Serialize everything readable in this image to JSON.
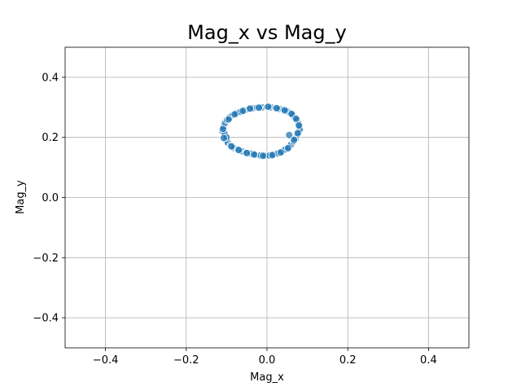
{
  "chart_data": {
    "type": "scatter",
    "title": "Mag_x vs Mag_y",
    "xlabel": "Mag_x",
    "ylabel": "Mag_y",
    "xlim": [
      -0.5,
      0.5
    ],
    "ylim": [
      -0.5,
      0.5
    ],
    "xticks": [
      -0.4,
      -0.2,
      0.0,
      0.2,
      0.4
    ],
    "yticks": [
      -0.4,
      -0.2,
      0.0,
      0.2,
      0.4
    ],
    "xtick_labels": [
      "−0.4",
      "−0.2",
      "0.0",
      "0.2",
      "0.4"
    ],
    "ytick_labels": [
      "−0.4",
      "−0.2",
      "0.0",
      "0.2",
      "0.4"
    ],
    "grid": true,
    "marker_color": "#1f77b4",
    "marker_edge_color": "#ffffff",
    "points": [
      [
        -0.11,
        0.22
      ],
      [
        -0.108,
        0.235
      ],
      [
        -0.106,
        0.205
      ],
      [
        -0.104,
        0.248
      ],
      [
        -0.102,
        0.192
      ],
      [
        -0.099,
        0.258
      ],
      [
        -0.097,
        0.182
      ],
      [
        -0.093,
        0.266
      ],
      [
        -0.09,
        0.173
      ],
      [
        -0.085,
        0.274
      ],
      [
        -0.082,
        0.165
      ],
      [
        -0.076,
        0.28
      ],
      [
        -0.072,
        0.16
      ],
      [
        -0.066,
        0.285
      ],
      [
        -0.062,
        0.154
      ],
      [
        -0.056,
        0.29
      ],
      [
        -0.051,
        0.15
      ],
      [
        -0.046,
        0.294
      ],
      [
        -0.04,
        0.146
      ],
      [
        -0.035,
        0.297
      ],
      [
        -0.028,
        0.142
      ],
      [
        -0.024,
        0.299
      ],
      [
        -0.016,
        0.14
      ],
      [
        -0.012,
        0.3
      ],
      [
        -0.005,
        0.139
      ],
      [
        0.0,
        0.301
      ],
      [
        0.006,
        0.14
      ],
      [
        0.01,
        0.3
      ],
      [
        0.016,
        0.143
      ],
      [
        0.021,
        0.298
      ],
      [
        0.027,
        0.147
      ],
      [
        0.031,
        0.295
      ],
      [
        0.037,
        0.153
      ],
      [
        0.041,
        0.292
      ],
      [
        0.045,
        0.16
      ],
      [
        0.05,
        0.287
      ],
      [
        0.053,
        0.168
      ],
      [
        0.057,
        0.281
      ],
      [
        0.06,
        0.177
      ],
      [
        0.064,
        0.274
      ],
      [
        0.066,
        0.187
      ],
      [
        0.069,
        0.265
      ],
      [
        0.071,
        0.197
      ],
      [
        0.074,
        0.256
      ],
      [
        0.075,
        0.208
      ],
      [
        0.078,
        0.246
      ],
      [
        0.079,
        0.218
      ],
      [
        0.08,
        0.235
      ],
      [
        0.081,
        0.227
      ],
      [
        0.055,
        0.208
      ],
      [
        -0.105,
        0.212
      ],
      [
        -0.1,
        0.2
      ],
      [
        -0.095,
        0.26
      ],
      [
        -0.088,
        0.17
      ],
      [
        -0.08,
        0.277
      ],
      [
        -0.07,
        0.158
      ],
      [
        -0.06,
        0.288
      ],
      [
        -0.05,
        0.148
      ],
      [
        -0.042,
        0.296
      ],
      [
        -0.032,
        0.143
      ],
      [
        -0.02,
        0.299
      ],
      [
        -0.01,
        0.139
      ],
      [
        0.003,
        0.302
      ],
      [
        0.013,
        0.141
      ],
      [
        0.024,
        0.297
      ],
      [
        0.034,
        0.15
      ],
      [
        0.044,
        0.29
      ],
      [
        0.052,
        0.164
      ],
      [
        0.061,
        0.278
      ],
      [
        0.067,
        0.192
      ],
      [
        0.072,
        0.262
      ],
      [
        0.076,
        0.214
      ],
      [
        0.079,
        0.24
      ],
      [
        -0.109,
        0.228
      ],
      [
        -0.107,
        0.198
      ]
    ]
  }
}
